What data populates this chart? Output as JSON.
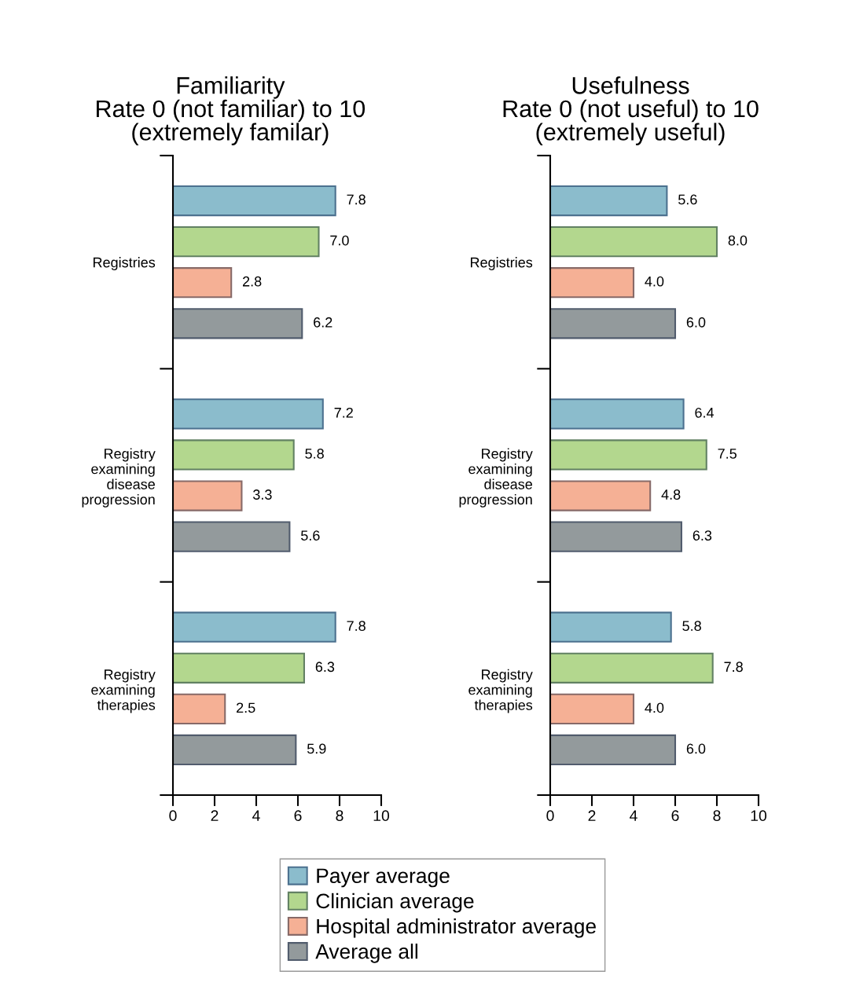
{
  "chart_data": [
    {
      "type": "bar",
      "orientation": "horizontal",
      "title": "Familiarity\nRate 0 (not familiar) to 10\n(extremely familar)",
      "categories": [
        "Registries",
        "Registry\nexamining\ndisease\nprogression",
        "Registry\nexamining\ntherapies"
      ],
      "xlim": [
        0,
        10
      ],
      "xticks": [
        0,
        2,
        4,
        6,
        8,
        10
      ],
      "legend": "bottom",
      "series": [
        {
          "name": "Payer average",
          "color": "#8bbccc",
          "values": [
            7.8,
            7.2,
            7.8
          ],
          "value_labels": [
            "7.8",
            "7.2",
            "7.8"
          ]
        },
        {
          "name": "Clinician average",
          "color": "#b3d78e",
          "values": [
            7.0,
            5.8,
            6.3
          ],
          "value_labels": [
            "7.0",
            "5.8",
            "6.3"
          ]
        },
        {
          "name": "Hospital administrator average",
          "color": "#f5b095",
          "values": [
            2.8,
            3.3,
            2.5
          ],
          "value_labels": [
            "2.8",
            "3.3",
            "2.5"
          ]
        },
        {
          "name": "Average all",
          "color": "#939a9c",
          "values": [
            6.2,
            5.6,
            5.9
          ],
          "value_labels": [
            "6.2",
            "5.6",
            "5.9"
          ]
        }
      ]
    },
    {
      "type": "bar",
      "orientation": "horizontal",
      "title": "Usefulness\nRate 0 (not useful) to 10\n(extremely useful)",
      "categories": [
        "Registries",
        "Registry\nexamining\ndisease\nprogression",
        "Registry\nexamining\ntherapies"
      ],
      "xlim": [
        0,
        10
      ],
      "xticks": [
        0,
        2,
        4,
        6,
        8,
        10
      ],
      "series": [
        {
          "color": "#8bbccc",
          "values": [
            5.6,
            6.4,
            5.8
          ],
          "value_labels": [
            "5.6",
            "6.4",
            "5.8"
          ]
        },
        {
          "color": "#b3d78e",
          "values": [
            8.0,
            7.5,
            7.8
          ],
          "value_labels": [
            "8.0",
            "7.5",
            "7.8"
          ]
        },
        {
          "color": "#f5b095",
          "values": [
            4.0,
            4.8,
            4.0
          ],
          "value_labels": [
            "4.0",
            "4.8",
            "4.0"
          ]
        },
        {
          "color": "#939a9c",
          "values": [
            6.0,
            6.3,
            6.0
          ],
          "value_labels": [
            "6.0",
            "6.3",
            "6.0"
          ]
        }
      ]
    }
  ]
}
